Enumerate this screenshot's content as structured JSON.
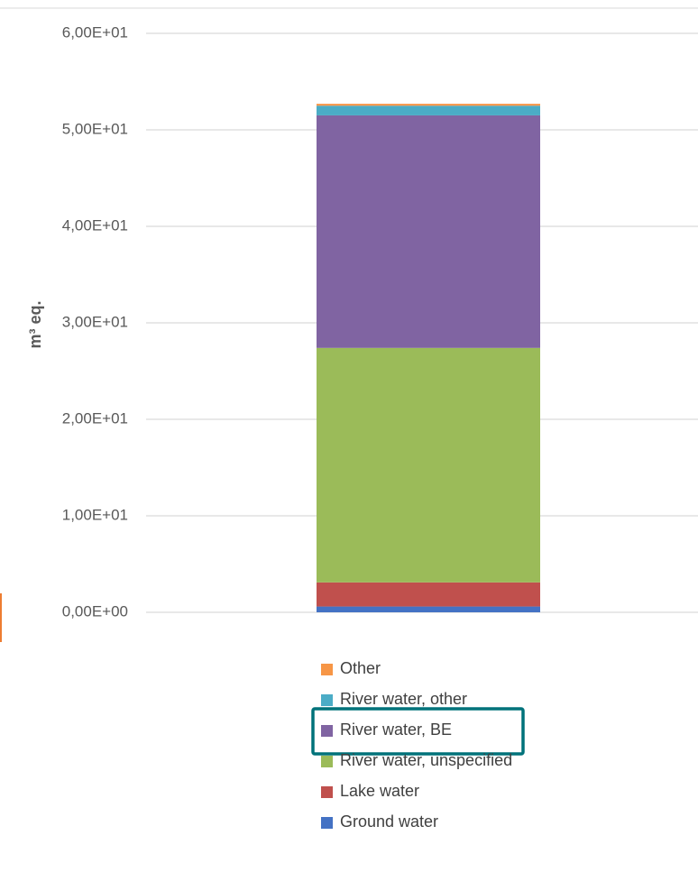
{
  "chart_data": {
    "type": "bar",
    "stacked": true,
    "categories": [
      ""
    ],
    "ylabel": "m³ eq.",
    "ylim": [
      0,
      60
    ],
    "yticks": [
      0,
      10,
      20,
      30,
      40,
      50,
      60
    ],
    "ytick_labels": [
      "0,00E+00",
      "1,00E+01",
      "2,00E+01",
      "3,00E+01",
      "4,00E+01",
      "5,00E+01",
      "6,00E+01"
    ],
    "grid": true,
    "legend_position": "bottom",
    "series": [
      {
        "name": "Ground water",
        "values": [
          0.6
        ],
        "color": "#4472C4"
      },
      {
        "name": "Lake water",
        "values": [
          2.5
        ],
        "color": "#C0504D"
      },
      {
        "name": "River water, unspecified",
        "values": [
          24.3
        ],
        "color": "#9BBB59"
      },
      {
        "name": "River water, BE",
        "values": [
          24.1
        ],
        "color": "#8064A2"
      },
      {
        "name": "River water, other",
        "values": [
          1.0
        ],
        "color": "#4BACC6"
      },
      {
        "name": "Other",
        "values": [
          0.2
        ],
        "color": "#F79646"
      }
    ],
    "highlighted_series": "River water, BE",
    "highlight_color": "#00727A"
  }
}
